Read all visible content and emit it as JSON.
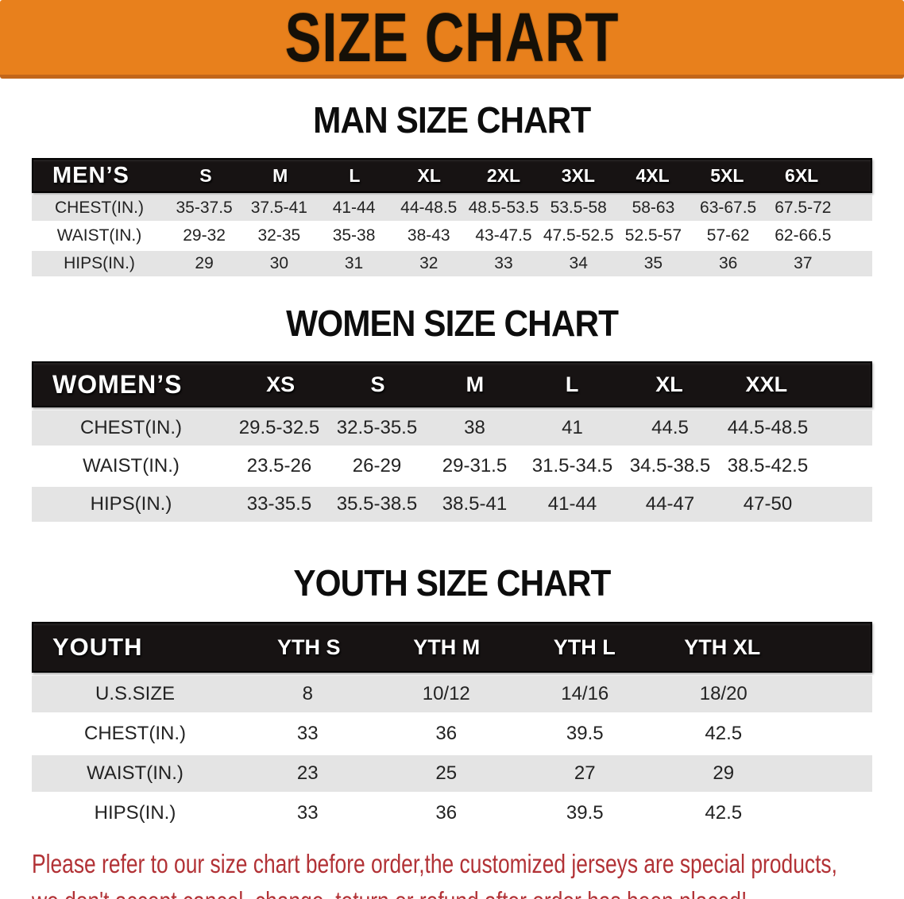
{
  "banner": {
    "title": "SIZE CHART"
  },
  "colors": {
    "banner_orange": "#E8801C",
    "banner_border": "#C2661A",
    "table_header_black": "#171313",
    "row_gray": "#E4E4E4",
    "disclaimer_red": "#B23236"
  },
  "sections": [
    {
      "id": "men",
      "heading": "MAN SIZE CHART",
      "table": {
        "corner_label": "MEN’S",
        "columns": [
          "S",
          "M",
          "L",
          "XL",
          "2XL",
          "3XL",
          "4XL",
          "5XL",
          "6XL"
        ],
        "rows": [
          {
            "label": "CHEST(IN.)",
            "values": [
              "35-37.5",
              "37.5-41",
              "41-44",
              "44-48.5",
              "48.5-53.5",
              "53.5-58",
              "58-63",
              "63-67.5",
              "67.5-72"
            ]
          },
          {
            "label": "WAIST(IN.)",
            "values": [
              "29-32",
              "32-35",
              "35-38",
              "38-43",
              "43-47.5",
              "47.5-52.5",
              "52.5-57",
              "57-62",
              "62-66.5"
            ]
          },
          {
            "label": "HIPS(IN.)",
            "values": [
              "29",
              "30",
              "31",
              "32",
              "33",
              "34",
              "35",
              "36",
              "37"
            ]
          }
        ]
      }
    },
    {
      "id": "women",
      "heading": "WOMEN SIZE CHART",
      "table": {
        "corner_label": "WOMEN’S",
        "columns": [
          "XS",
          "S",
          "M",
          "L",
          "XL",
          "XXL"
        ],
        "rows": [
          {
            "label": "CHEST(IN.)",
            "values": [
              "29.5-32.5",
              "32.5-35.5",
              "38",
              "41",
              "44.5",
              "44.5-48.5"
            ]
          },
          {
            "label": "WAIST(IN.)",
            "values": [
              "23.5-26",
              "26-29",
              "29-31.5",
              "31.5-34.5",
              "34.5-38.5",
              "38.5-42.5"
            ]
          },
          {
            "label": "HIPS(IN.)",
            "values": [
              "33-35.5",
              "35.5-38.5",
              "38.5-41",
              "41-44",
              "44-47",
              "47-50"
            ]
          }
        ]
      }
    },
    {
      "id": "youth",
      "heading": "YOUTH SIZE CHART",
      "table": {
        "corner_label": "YOUTH",
        "columns": [
          "YTH S",
          "YTH M",
          "YTH L",
          "YTH XL"
        ],
        "rows": [
          {
            "label": "U.S.SIZE",
            "values": [
              "8",
              "10/12",
              "14/16",
              "18/20"
            ]
          },
          {
            "label": "CHEST(IN.)",
            "values": [
              "33",
              "36",
              "39.5",
              "42.5"
            ]
          },
          {
            "label": "WAIST(IN.)",
            "values": [
              "23",
              "25",
              "27",
              "29"
            ]
          },
          {
            "label": "HIPS(IN.)",
            "values": [
              "33",
              "36",
              "39.5",
              "42.5"
            ]
          }
        ]
      }
    }
  ],
  "disclaimer": {
    "line1": "Please refer to our size chart before order,the customized jerseys are special products,",
    "line2": "we don't accept cancel, change, teturn or refund after order has been placed!"
  }
}
